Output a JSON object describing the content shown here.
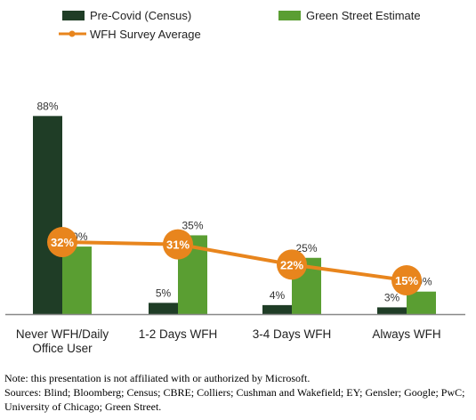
{
  "chart_data": {
    "type": "bar",
    "categories": [
      "Never WFH/Daily Office User",
      "1-2 Days WFH",
      "3-4 Days WFH",
      "Always WFH"
    ],
    "category_lines": [
      [
        "Never WFH/Daily",
        "Office User"
      ],
      [
        "1-2 Days WFH"
      ],
      [
        "3-4 Days WFH"
      ],
      [
        "Always WFH"
      ]
    ],
    "series": [
      {
        "name": "Pre-Covid (Census)",
        "kind": "bar",
        "color": "#1f3d26",
        "values": [
          88,
          5,
          4,
          3
        ],
        "labels": [
          "88%",
          "5%",
          "4%",
          "3%"
        ]
      },
      {
        "name": "Green Street Estimate",
        "kind": "bar",
        "color": "#5a9e32",
        "values": [
          30,
          35,
          25,
          10
        ],
        "labels": [
          "30%",
          "35%",
          "25%",
          "10%"
        ]
      },
      {
        "name": "WFH Survey Average",
        "kind": "line",
        "color": "#e8851d",
        "values": [
          32,
          31,
          22,
          15
        ],
        "labels": [
          "32%",
          "31%",
          "22%",
          "15%"
        ]
      }
    ],
    "ylim": [
      0,
      100
    ],
    "grid": false,
    "legend": "top",
    "title": "",
    "xlabel": "",
    "ylabel": ""
  },
  "footnote": {
    "note": "Note: this presentation is not affiliated with or authorized by Microsoft.",
    "sources": "Sources: Blind; Bloomberg; Census; CBRE; Colliers; Cushman and Wakefield; EY; Gensler; Google; PwC; University of Chicago; Green Street."
  }
}
